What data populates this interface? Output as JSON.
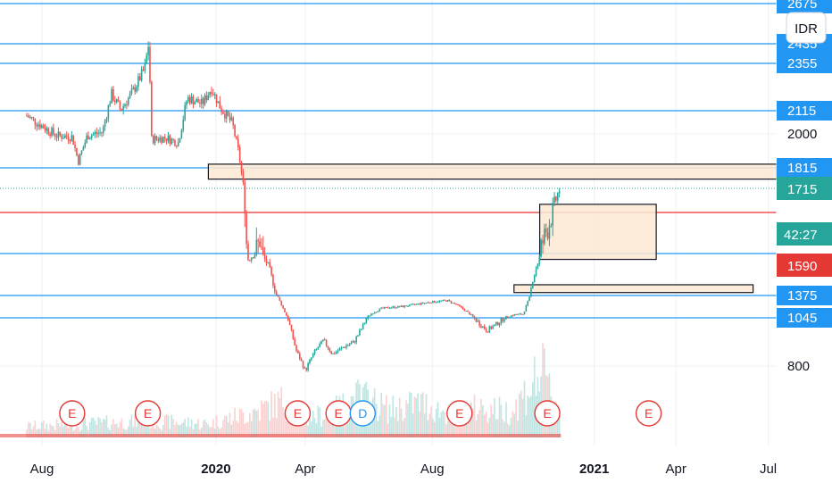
{
  "chart_data": {
    "type": "candlestick",
    "currency": "IDR",
    "x_ticks": [
      "Aug",
      "2020",
      "Apr",
      "Aug",
      "2021",
      "Apr",
      "Jul"
    ],
    "x_tick_pos": [
      0.5,
      6.25,
      9.2,
      13.4,
      18.75,
      21.45,
      24.5
    ],
    "y_ticks": [
      2675,
      2435,
      2355,
      2115,
      2000,
      1815,
      1715,
      1590,
      1375,
      1045,
      800
    ],
    "y_ticks_plain": [
      2000,
      800
    ],
    "horizontal_levels": [
      2675,
      2435,
      2355,
      2115,
      1815,
      1590,
      1375,
      1045
    ],
    "current_price": 1715,
    "red_line_price": 1650,
    "countdown": "42:27",
    "zones": [
      {
        "t_start": 6.0,
        "t_end": 26.5,
        "price_low": 1760,
        "price_high": 1835
      },
      {
        "t_start": 16.95,
        "t_end": 20.8,
        "price_low": 1560,
        "price_high": 1672
      },
      {
        "t_start": 16.1,
        "t_end": 24.0,
        "price_low": 1390,
        "price_high": 1430
      }
    ],
    "events": [
      {
        "label": "E",
        "t": 1.5,
        "kind": "earnings"
      },
      {
        "label": "E",
        "t": 4.0,
        "kind": "earnings"
      },
      {
        "label": "E",
        "t": 8.95,
        "kind": "earnings"
      },
      {
        "label": "E",
        "t": 10.3,
        "kind": "earnings"
      },
      {
        "label": "D",
        "t": 11.1,
        "kind": "dividend"
      },
      {
        "label": "E",
        "t": 14.3,
        "kind": "earnings"
      },
      {
        "label": "E",
        "t": 17.2,
        "kind": "earnings"
      },
      {
        "label": "E",
        "t": 20.55,
        "kind": "earnings"
      }
    ],
    "price_path": [
      [
        0,
        2090
      ],
      [
        0.5,
        2040
      ],
      [
        1.0,
        1990
      ],
      [
        1.5,
        1985
      ],
      [
        1.7,
        1850
      ],
      [
        2.0,
        1990
      ],
      [
        2.5,
        2010
      ],
      [
        2.8,
        2200
      ],
      [
        3.1,
        2120
      ],
      [
        3.5,
        2210
      ],
      [
        3.9,
        2330
      ],
      [
        4.05,
        2460
      ],
      [
        4.1,
        1970
      ],
      [
        4.6,
        1980
      ],
      [
        5.0,
        1950
      ],
      [
        5.3,
        2180
      ],
      [
        5.8,
        2150
      ],
      [
        6.1,
        2230
      ],
      [
        6.4,
        2130
      ],
      [
        6.8,
        2050
      ],
      [
        7.0,
        1900
      ],
      [
        7.3,
        1560
      ],
      [
        7.7,
        1610
      ],
      [
        8.0,
        1520
      ],
      [
        8.3,
        1350
      ],
      [
        8.6,
        1060
      ],
      [
        8.9,
        880
      ],
      [
        9.2,
        780
      ],
      [
        9.5,
        870
      ],
      [
        9.8,
        930
      ],
      [
        10.1,
        860
      ],
      [
        10.5,
        900
      ],
      [
        10.8,
        920
      ],
      [
        11.1,
        1000
      ],
      [
        11.4,
        1110
      ],
      [
        11.7,
        1180
      ],
      [
        12.0,
        1200
      ],
      [
        12.4,
        1210
      ],
      [
        12.8,
        1240
      ],
      [
        13.2,
        1270
      ],
      [
        13.6,
        1290
      ],
      [
        13.9,
        1300
      ],
      [
        14.2,
        1240
      ],
      [
        14.5,
        1150
      ],
      [
        14.8,
        1040
      ],
      [
        15.2,
        980
      ],
      [
        15.5,
        1010
      ],
      [
        15.8,
        1050
      ],
      [
        16.1,
        1090
      ],
      [
        16.4,
        1100
      ],
      [
        16.7,
        1450
      ],
      [
        17.0,
        1600
      ],
      [
        17.3,
        1640
      ],
      [
        17.55,
        1700
      ],
      [
        17.65,
        1730
      ]
    ],
    "volume_path": [
      [
        0,
        0.12
      ],
      [
        2,
        0.15
      ],
      [
        4,
        0.18
      ],
      [
        6,
        0.15
      ],
      [
        7.5,
        0.28
      ],
      [
        8.5,
        0.4
      ],
      [
        9,
        0.2
      ],
      [
        10,
        0.26
      ],
      [
        11,
        0.45
      ],
      [
        12,
        0.3
      ],
      [
        13,
        0.38
      ],
      [
        14,
        0.25
      ],
      [
        15,
        0.33
      ],
      [
        16,
        0.28
      ],
      [
        17,
        0.72
      ],
      [
        17.6,
        0.3
      ]
    ]
  }
}
